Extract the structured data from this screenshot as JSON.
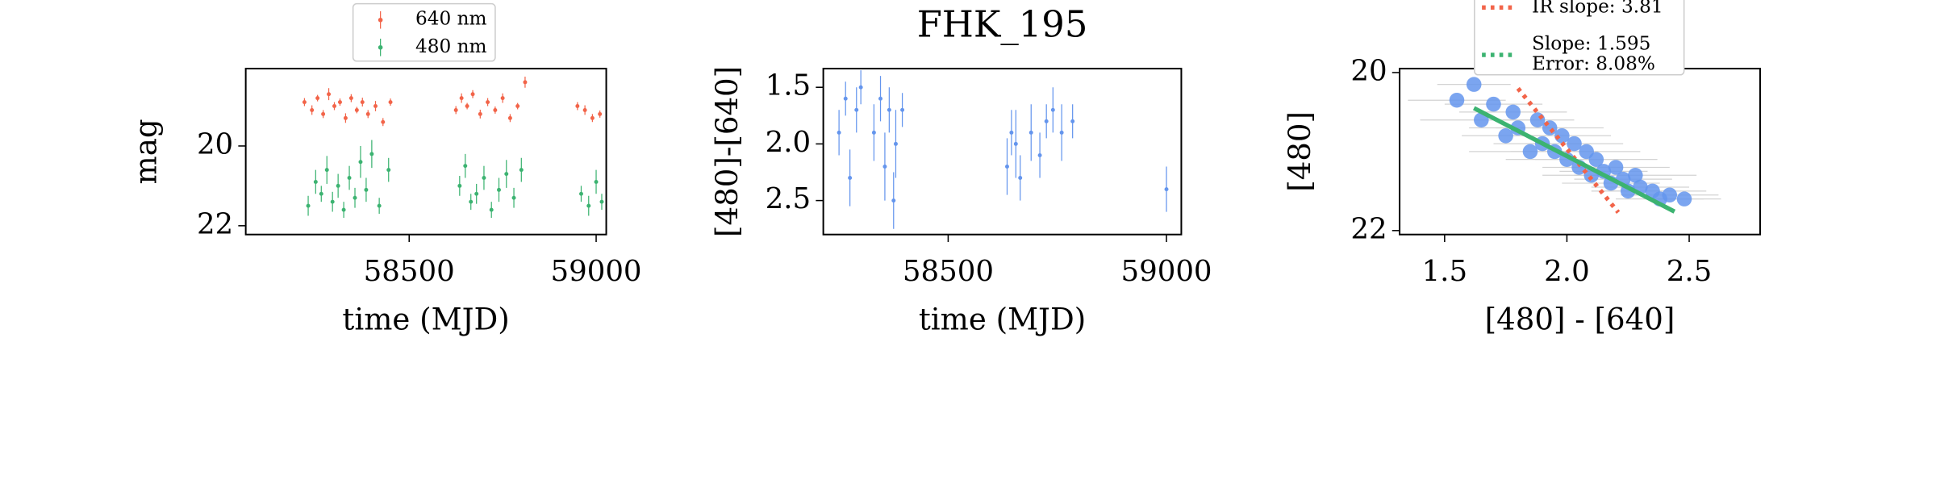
{
  "chart_data": [
    {
      "type": "scatter",
      "xlabel": "time (MJD)",
      "ylabel": "mag",
      "xlim": [
        58063,
        59027
      ],
      "ylim": [
        22.22,
        18.06
      ],
      "xticks": [
        58500,
        59000
      ],
      "yticks": [
        20,
        22
      ],
      "series": [
        {
          "name": "640 nm",
          "color": "#f26449",
          "x": [
            58220,
            58240,
            58255,
            58270,
            58285,
            58300,
            58315,
            58330,
            58345,
            58360,
            58375,
            58390,
            58410,
            58430,
            58450,
            58625,
            58640,
            58655,
            58670,
            58690,
            58710,
            58730,
            58750,
            58770,
            58790,
            58810,
            58950,
            58970,
            58990,
            59010
          ],
          "values": [
            18.9,
            19.1,
            18.8,
            19.2,
            18.7,
            19.0,
            18.9,
            19.3,
            18.8,
            19.1,
            18.9,
            19.2,
            19.0,
            19.4,
            18.9,
            19.1,
            18.8,
            19.0,
            18.7,
            19.2,
            18.9,
            19.1,
            18.8,
            19.3,
            19.0,
            18.4,
            19.0,
            19.1,
            19.3,
            19.2
          ],
          "errors": [
            0.1,
            0.12,
            0.08,
            0.1,
            0.15,
            0.1,
            0.09,
            0.12,
            0.1,
            0.08,
            0.11,
            0.1,
            0.13,
            0.1,
            0.09,
            0.1,
            0.12,
            0.08,
            0.1,
            0.11,
            0.1,
            0.09,
            0.12,
            0.1,
            0.08,
            0.14,
            0.1,
            0.12,
            0.1,
            0.09
          ]
        },
        {
          "name": "480 nm",
          "color": "#3cb371",
          "x": [
            58230,
            58250,
            58265,
            58280,
            58295,
            58310,
            58325,
            58340,
            58355,
            58370,
            58385,
            58400,
            58420,
            58445,
            58635,
            58650,
            58665,
            58680,
            58700,
            58720,
            58740,
            58760,
            58780,
            58800,
            58960,
            58980,
            59000,
            59015
          ],
          "values": [
            21.5,
            20.9,
            21.2,
            20.6,
            21.4,
            21.0,
            21.6,
            20.8,
            21.3,
            20.4,
            21.1,
            20.2,
            21.5,
            20.6,
            21.0,
            20.5,
            21.4,
            21.2,
            20.8,
            21.6,
            21.1,
            20.7,
            21.3,
            20.6,
            21.2,
            21.5,
            20.9,
            21.4
          ],
          "errors": [
            0.25,
            0.3,
            0.2,
            0.35,
            0.25,
            0.3,
            0.2,
            0.3,
            0.25,
            0.4,
            0.3,
            0.35,
            0.2,
            0.3,
            0.25,
            0.3,
            0.2,
            0.25,
            0.3,
            0.2,
            0.3,
            0.35,
            0.25,
            0.3,
            0.2,
            0.25,
            0.3,
            0.2
          ]
        }
      ]
    },
    {
      "type": "scatter",
      "title": "FHK_195",
      "xlabel": "time (MJD)",
      "ylabel": "[480]-[640]",
      "xlim": [
        58214,
        59034
      ],
      "ylim": [
        2.8,
        1.335
      ],
      "xticks": [
        58500,
        59000
      ],
      "yticks": [
        1.5,
        {
          "value": 2,
          "label": "2.0"
        },
        2.5
      ],
      "series": [
        {
          "color": "#6495ed",
          "x": [
            58250,
            58265,
            58275,
            58290,
            58300,
            58330,
            58345,
            58355,
            58365,
            58375,
            58380,
            58395,
            58635,
            58645,
            58655,
            58665,
            58690,
            58710,
            58725,
            58740,
            58760,
            58785,
            59000
          ],
          "values": [
            1.9,
            1.6,
            2.3,
            1.7,
            1.5,
            1.9,
            1.6,
            2.2,
            1.7,
            2.5,
            2.0,
            1.7,
            2.2,
            1.9,
            2.0,
            2.3,
            1.9,
            2.1,
            1.8,
            1.7,
            1.9,
            1.8,
            2.4
          ],
          "errors": [
            0.2,
            0.15,
            0.25,
            0.2,
            0.15,
            0.25,
            0.2,
            0.3,
            0.2,
            0.25,
            0.3,
            0.15,
            0.25,
            0.2,
            0.3,
            0.2,
            0.25,
            0.2,
            0.15,
            0.2,
            0.25,
            0.15,
            0.2
          ]
        }
      ]
    },
    {
      "type": "scatter",
      "xlabel": "[480] - [640]",
      "ylabel": "[480]",
      "xlim": [
        1.316,
        2.79
      ],
      "ylim": [
        22.05,
        19.95
      ],
      "xticks": [
        1.5,
        {
          "value": 2,
          "label": "2.0"
        },
        2.5
      ],
      "yticks": [
        20,
        22
      ],
      "series": [
        {
          "color": "#6495ed",
          "x": [
            1.55,
            1.62,
            1.65,
            1.7,
            1.75,
            1.78,
            1.8,
            1.85,
            1.88,
            1.9,
            1.93,
            1.95,
            1.98,
            2.0,
            2.03,
            2.05,
            2.08,
            2.1,
            2.12,
            2.15,
            2.18,
            2.2,
            2.23,
            2.25,
            2.28,
            2.3,
            2.35,
            2.38,
            2.42,
            2.48
          ],
          "values": [
            20.35,
            20.15,
            20.6,
            20.4,
            20.8,
            20.5,
            20.7,
            21.0,
            20.6,
            20.9,
            20.7,
            21.0,
            20.8,
            21.1,
            20.9,
            21.2,
            21.0,
            21.3,
            21.1,
            21.25,
            21.4,
            21.2,
            21.35,
            21.5,
            21.3,
            21.45,
            21.5,
            21.6,
            21.55,
            21.6
          ],
          "xerr": [
            0.2,
            0.15,
            0.25,
            0.2,
            0.18,
            0.22,
            0.2,
            0.25,
            0.15,
            0.2,
            0.22,
            0.18,
            0.2,
            0.25,
            0.2,
            0.15,
            0.22,
            0.2,
            0.25,
            0.18,
            0.2,
            0.22,
            0.2,
            0.15,
            0.25,
            0.2,
            0.22,
            0.18,
            0.2,
            0.15
          ]
        }
      ],
      "lines": [
        {
          "name": "IR slope: 3.81",
          "color": "#f26449",
          "style": "dotted",
          "x": [
            1.8,
            2.21
          ],
          "values": [
            20.2,
            21.77
          ]
        },
        {
          "name": "Slope: 1.595",
          "note": "Error: 8.08%",
          "color": "#3cb371",
          "style": "solid",
          "x": [
            1.62,
            2.44
          ],
          "values": [
            20.45,
            21.76
          ]
        }
      ]
    }
  ]
}
